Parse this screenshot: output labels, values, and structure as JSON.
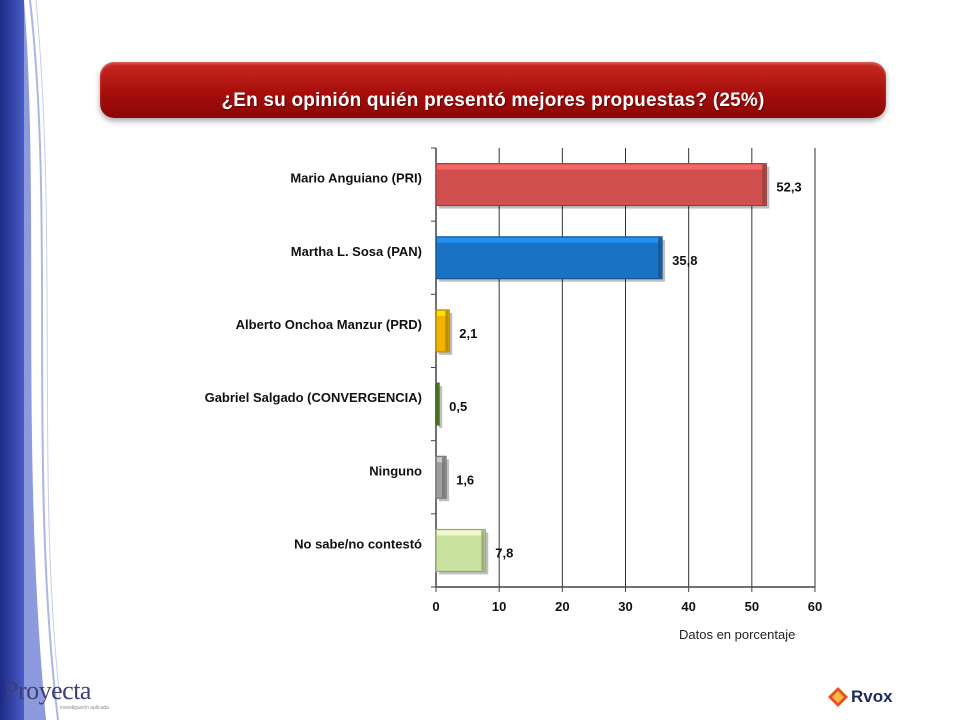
{
  "title": "¿En su opinión quién presentó mejores propuestas? (25%)",
  "footnote": "Datos en porcentaje",
  "logos": {
    "left": "Proyecta",
    "left_tagline": "investigación aplicada",
    "right": "Rvox"
  },
  "chart_data": {
    "type": "bar",
    "orientation": "horizontal",
    "categories": [
      "Mario Anguiano (PRI)",
      "Martha L. Sosa  (PAN)",
      "Alberto Onchoa Manzur (PRD)",
      "Gabriel Salgado (CONVERGENCIA)",
      "Ninguno",
      "No sabe/no contestó"
    ],
    "values": [
      52.3,
      35.8,
      2.1,
      0.5,
      1.6,
      7.8
    ],
    "value_labels": [
      "52,3",
      "35,8",
      "2,1",
      "0,5",
      "1,6",
      "7,8"
    ],
    "colors": [
      "#d05050",
      "#1a72c4",
      "#f0b400",
      "#5c8a2a",
      "#9e9e9e",
      "#c9e2a0"
    ],
    "xlim": [
      0,
      60
    ],
    "ticks": [
      0,
      10,
      20,
      30,
      40,
      50,
      60
    ],
    "tick_labels": [
      "0",
      "10",
      "20",
      "30",
      "40",
      "50",
      "60"
    ],
    "grid": true,
    "legend": "none",
    "xlabel": "",
    "ylabel": ""
  }
}
